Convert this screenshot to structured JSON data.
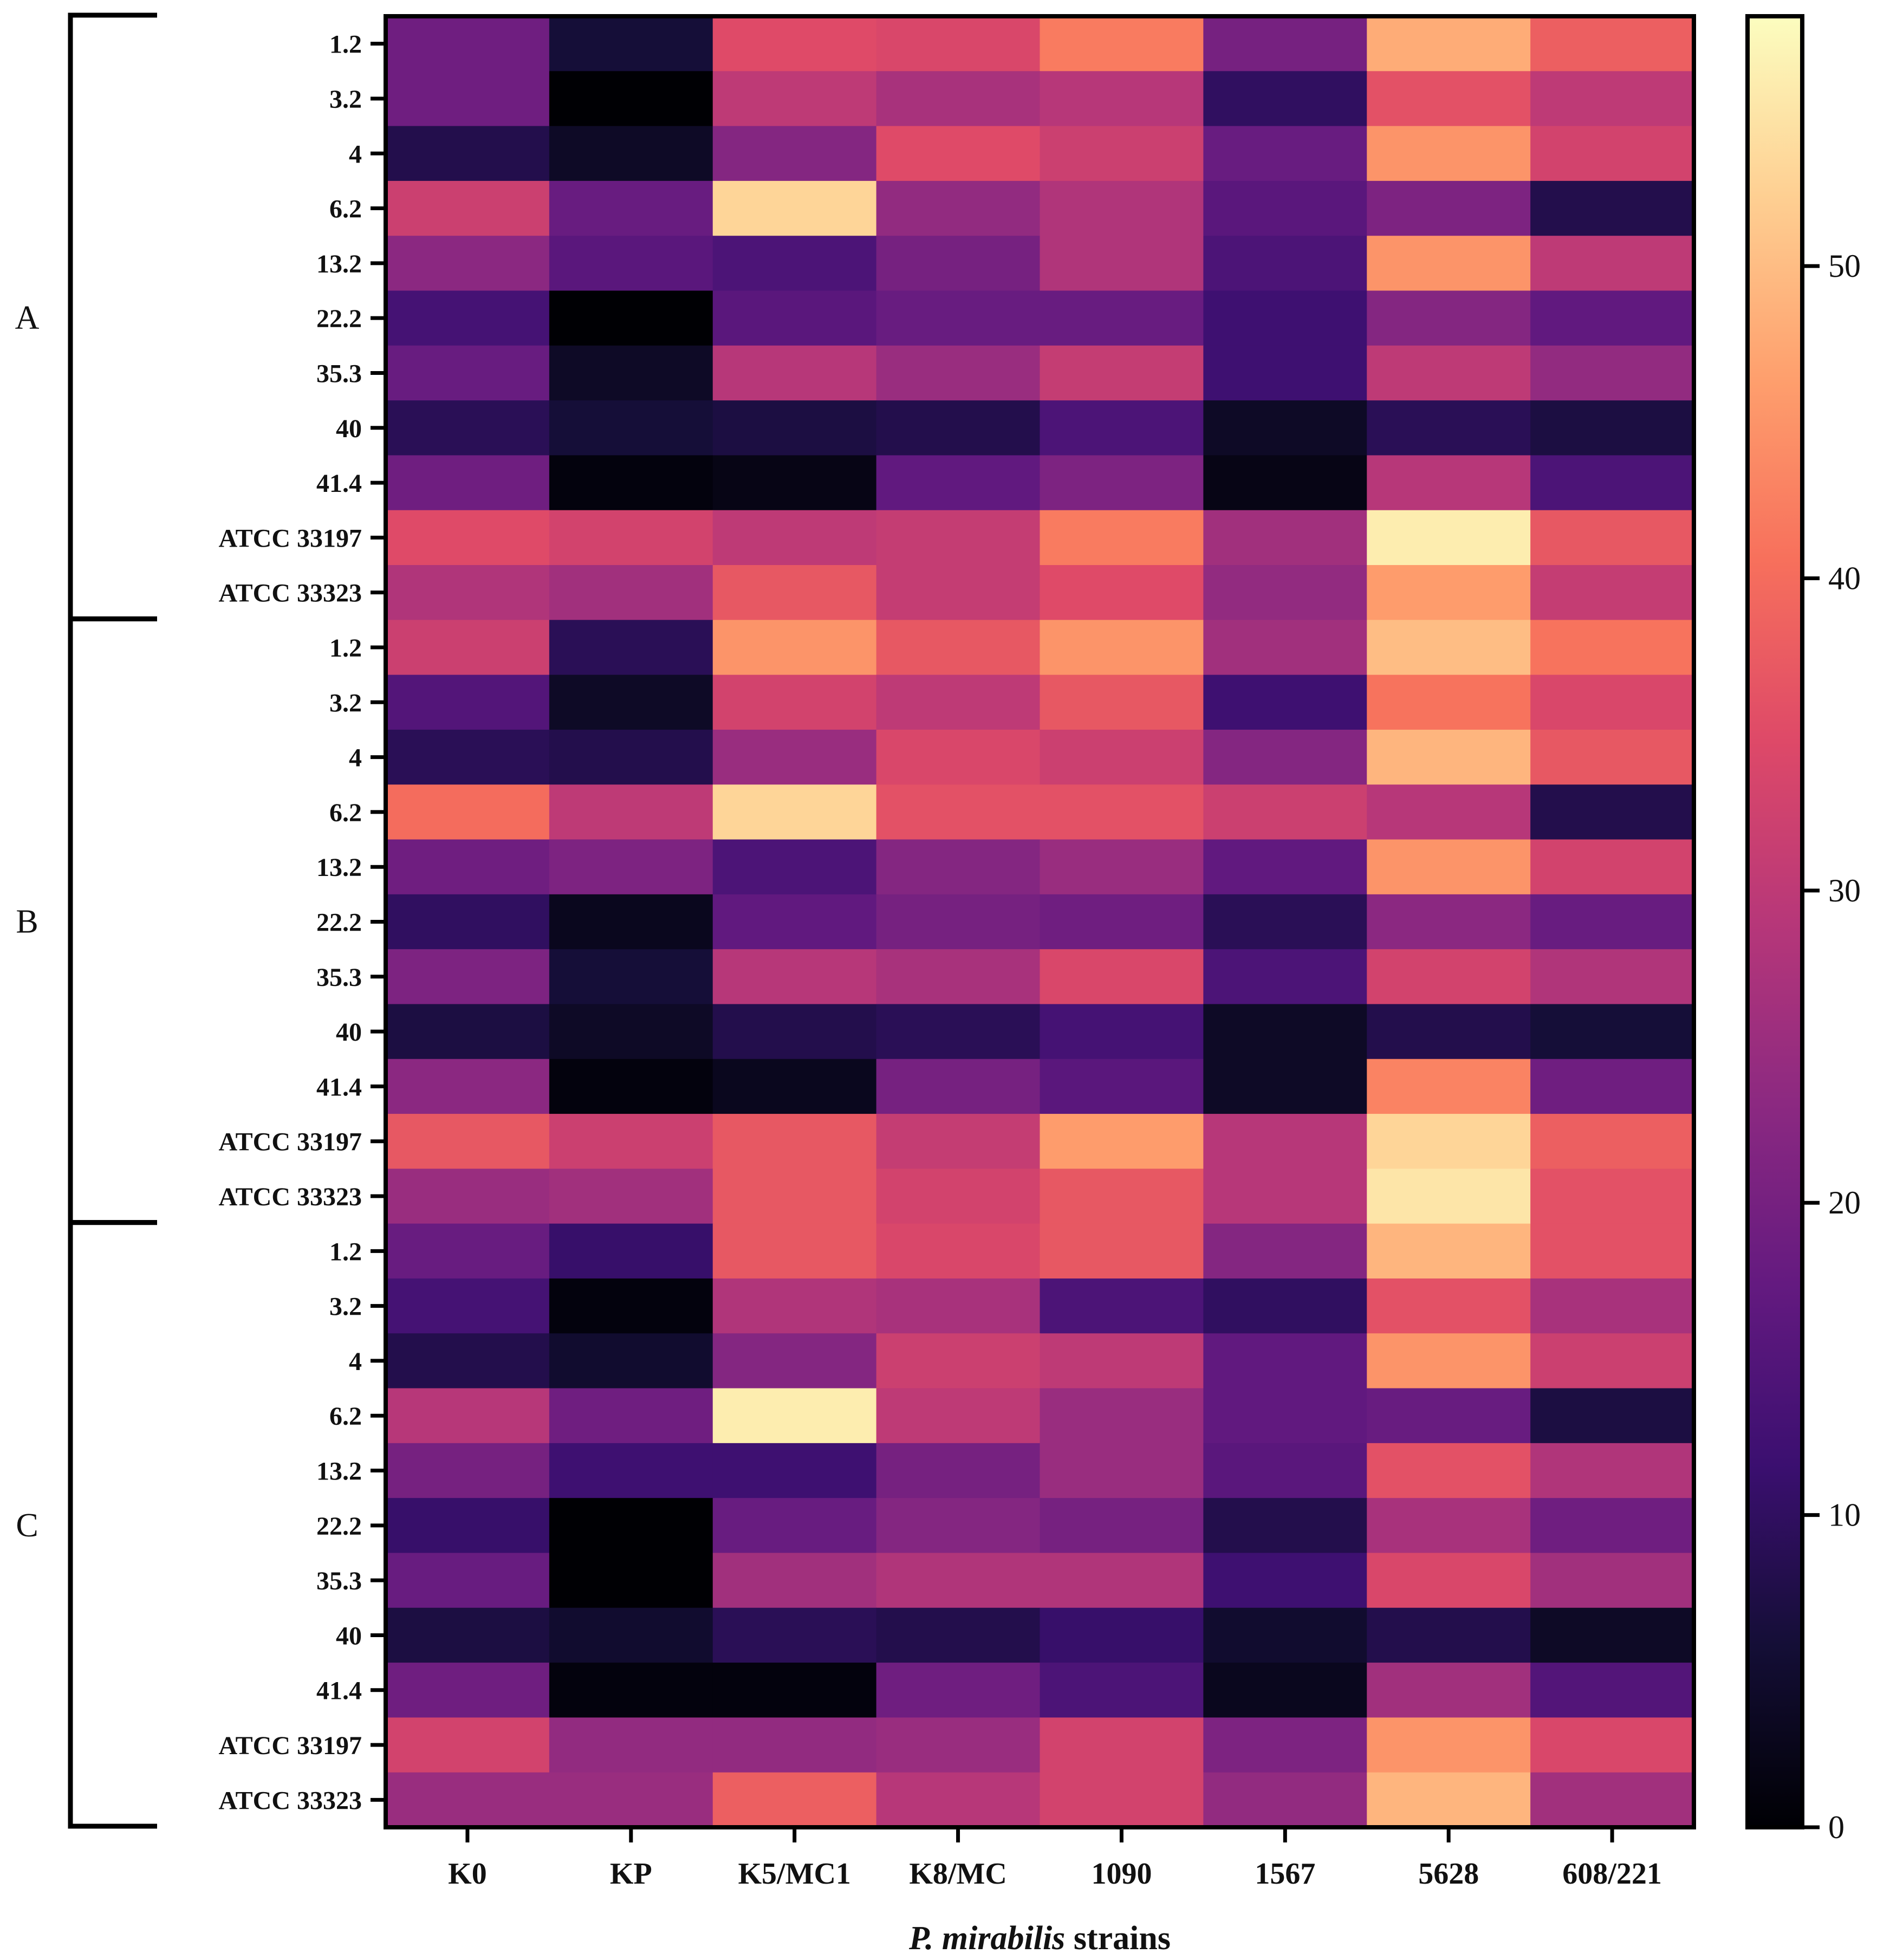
{
  "chart_data": {
    "type": "heatmap",
    "xlabel_italic": "P. mirabilis",
    "xlabel_rest": " strains",
    "columns": [
      "K0",
      "KP",
      "K5/MC1",
      "K8/MC",
      "1090",
      "1567",
      "5628",
      "608/221"
    ],
    "groups": [
      {
        "name": "A",
        "rows": [
          "1.2",
          "3.2",
          "4",
          "6.2",
          "13.2",
          "22.2",
          "35.3",
          "40",
          "41.4",
          "ATCC 33197",
          "ATCC 33323"
        ],
        "values": [
          [
            19,
            6,
            35,
            34,
            42,
            20,
            48,
            38
          ],
          [
            19,
            0,
            30,
            27,
            29,
            10,
            36,
            30
          ],
          [
            8,
            4,
            22,
            35,
            32,
            18,
            45,
            33
          ],
          [
            32,
            18,
            53,
            24,
            28,
            16,
            21,
            8
          ],
          [
            23,
            16,
            14,
            20,
            28,
            14,
            45,
            30
          ],
          [
            13,
            0,
            16,
            18,
            18,
            12,
            22,
            17
          ],
          [
            18,
            4,
            29,
            25,
            31,
            12,
            30,
            24
          ],
          [
            9,
            6,
            7,
            8,
            14,
            4,
            9,
            7
          ],
          [
            19,
            1,
            2,
            17,
            21,
            2,
            29,
            14
          ],
          [
            35,
            33,
            30,
            31,
            42,
            26,
            56,
            37
          ],
          [
            28,
            26,
            37,
            31,
            35,
            24,
            46,
            31
          ]
        ]
      },
      {
        "name": "B",
        "rows": [
          "1.2",
          "3.2",
          "4",
          "6.2",
          "13.2",
          "22.2",
          "35.3",
          "40",
          "41.4",
          "ATCC 33197",
          "ATCC 33323"
        ],
        "values": [
          [
            32,
            9,
            45,
            37,
            45,
            26,
            50,
            41
          ],
          [
            15,
            4,
            33,
            30,
            37,
            12,
            41,
            34
          ],
          [
            9,
            8,
            25,
            34,
            32,
            22,
            49,
            37
          ],
          [
            40,
            30,
            53,
            36,
            36,
            32,
            29,
            8
          ],
          [
            19,
            21,
            14,
            22,
            25,
            17,
            45,
            33
          ],
          [
            10,
            3,
            17,
            20,
            19,
            9,
            23,
            18
          ],
          [
            21,
            6,
            29,
            27,
            34,
            14,
            33,
            28
          ],
          [
            7,
            4,
            8,
            9,
            13,
            4,
            8,
            6
          ],
          [
            23,
            1,
            3,
            20,
            16,
            4,
            43,
            19
          ],
          [
            37,
            32,
            37,
            31,
            46,
            29,
            53,
            38
          ],
          [
            25,
            26,
            37,
            33,
            37,
            29,
            55,
            36
          ]
        ]
      },
      {
        "name": "C",
        "rows": [
          "1.2",
          "3.2",
          "4",
          "6.2",
          "13.2",
          "22.2",
          "35.3",
          "40",
          "41.4",
          "ATCC 33197",
          "ATCC 33323"
        ],
        "values": [
          [
            18,
            11,
            37,
            34,
            37,
            22,
            49,
            36
          ],
          [
            13,
            1,
            28,
            27,
            14,
            10,
            36,
            27
          ],
          [
            8,
            5,
            22,
            32,
            30,
            17,
            45,
            32
          ],
          [
            29,
            19,
            56,
            30,
            25,
            17,
            18,
            7
          ],
          [
            20,
            12,
            12,
            20,
            25,
            16,
            36,
            28
          ],
          [
            11,
            0,
            18,
            22,
            20,
            8,
            27,
            19
          ],
          [
            18,
            0,
            26,
            28,
            28,
            12,
            34,
            26
          ],
          [
            7,
            5,
            9,
            8,
            11,
            5,
            8,
            4
          ],
          [
            19,
            1,
            1,
            19,
            14,
            3,
            26,
            15
          ],
          [
            33,
            24,
            24,
            25,
            33,
            21,
            45,
            34
          ],
          [
            25,
            25,
            38,
            29,
            33,
            24,
            49,
            26
          ]
        ]
      }
    ],
    "colorbar": {
      "min": 0,
      "max": 58,
      "ticks": [
        0,
        10,
        20,
        30,
        40,
        50
      ],
      "colormap": "magma"
    }
  }
}
